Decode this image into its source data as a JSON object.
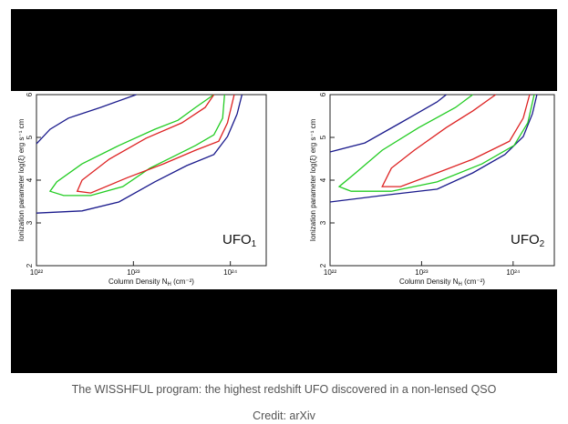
{
  "chart_data": [
    {
      "type": "line",
      "xlabel": [
        "Column Density N",
        "H",
        " (cm⁻²)"
      ],
      "ylabel": "Ionization parameter log(ξ) erg s⁻¹ cm",
      "annotation": [
        "UFO",
        "1"
      ],
      "xlim": [
        22,
        24.37
      ],
      "ylim": [
        2,
        6
      ],
      "xticks": [
        {
          "value": 22,
          "label": "10²²"
        },
        {
          "value": 23,
          "label": "10²³"
        },
        {
          "value": 24,
          "label": "10²⁴"
        }
      ],
      "yticks": [
        2,
        3,
        4,
        5,
        6
      ],
      "series": [
        {
          "color": "#1a1a8c",
          "x": [
            23.03,
            22.66,
            22.33,
            22.14,
            22.0,
            null,
            22.0,
            22.47,
            22.85,
            23.22,
            23.55,
            23.83,
            23.97,
            24.07,
            24.12
          ],
          "y": [
            6.0,
            5.7,
            5.45,
            5.19,
            4.85,
            null,
            3.23,
            3.28,
            3.49,
            3.96,
            4.34,
            4.6,
            5.02,
            5.55,
            6.0
          ]
        },
        {
          "color": "#22cc22",
          "x": [
            23.83,
            23.64,
            23.46,
            23.22,
            22.85,
            22.47,
            22.21,
            22.14,
            22.28,
            22.56,
            22.89,
            23.17,
            23.41,
            23.64,
            23.83,
            23.92,
            23.94
          ],
          "y": [
            6.0,
            5.7,
            5.4,
            5.19,
            4.81,
            4.38,
            3.96,
            3.74,
            3.64,
            3.64,
            3.85,
            4.28,
            4.55,
            4.81,
            5.06,
            5.45,
            6.0
          ]
        },
        {
          "color": "#dd2222",
          "x": [
            23.83,
            23.74,
            23.5,
            23.13,
            22.75,
            22.47,
            22.42,
            22.56,
            22.94,
            23.31,
            23.64,
            23.88,
            23.97,
            24.04
          ],
          "y": [
            6.0,
            5.7,
            5.34,
            4.98,
            4.49,
            4.0,
            3.74,
            3.7,
            4.06,
            4.38,
            4.7,
            4.91,
            5.34,
            6.0
          ]
        }
      ]
    },
    {
      "type": "line",
      "xlabel": [
        "Column Density N",
        "H",
        " (cm⁻²)"
      ],
      "ylabel": "Ionization parameter log(ξ) erg s⁻¹ cm",
      "annotation": [
        "UFO",
        "2"
      ],
      "xlim": [
        22,
        24.45
      ],
      "ylim": [
        2,
        6
      ],
      "xticks": [
        {
          "value": 22,
          "label": "10²²"
        },
        {
          "value": 23,
          "label": "10²³"
        },
        {
          "value": 24,
          "label": "10²⁴"
        }
      ],
      "yticks": [
        2,
        3,
        4,
        5,
        6
      ],
      "series": [
        {
          "color": "#1a1a8c",
          "x": [
            23.27,
            23.17,
            22.77,
            22.38,
            22.0,
            null,
            22.0,
            22.57,
            23.17,
            23.56,
            23.91,
            24.11,
            24.21,
            24.26
          ],
          "y": [
            6.0,
            5.83,
            5.34,
            4.87,
            4.66,
            null,
            3.49,
            3.64,
            3.79,
            4.17,
            4.6,
            5.02,
            5.55,
            6.0
          ]
        },
        {
          "color": "#22cc22",
          "x": [
            23.56,
            23.37,
            22.97,
            22.57,
            22.28,
            22.1,
            22.23,
            22.67,
            23.17,
            23.66,
            24.01,
            24.16,
            24.23
          ],
          "y": [
            6.0,
            5.7,
            5.23,
            4.7,
            4.17,
            3.85,
            3.74,
            3.74,
            3.96,
            4.38,
            4.81,
            5.34,
            6.0
          ]
        },
        {
          "color": "#dd2222",
          "x": [
            23.81,
            23.56,
            23.27,
            22.92,
            22.67,
            22.57,
            22.77,
            23.17,
            23.56,
            23.96,
            24.11,
            24.18
          ],
          "y": [
            6.0,
            5.62,
            5.23,
            4.7,
            4.28,
            3.85,
            3.85,
            4.17,
            4.49,
            4.91,
            5.45,
            6.0
          ]
        }
      ]
    }
  ],
  "caption": "The WISSHFUL program: the highest redshift UFO discovered in a non-lensed QSO",
  "credit": "Credit: arXiv"
}
